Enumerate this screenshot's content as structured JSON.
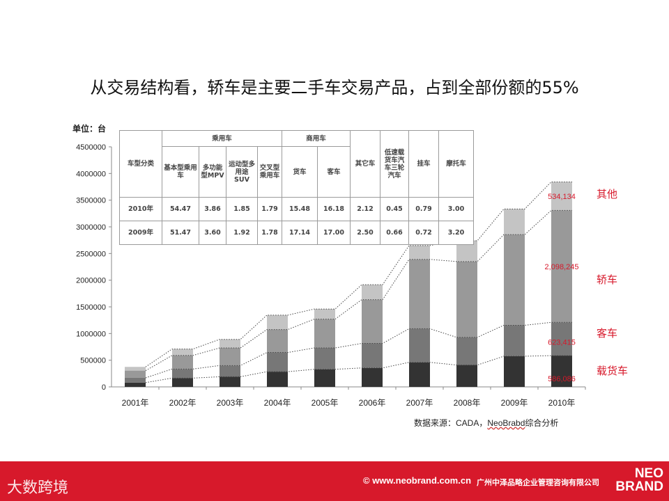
{
  "title": "从交易结构看，轿车是主要二手车交易产品，占到全部份额的55%",
  "unit_label": "单位：台",
  "source": {
    "prefix": "数据来源：",
    "main": "CADA，",
    "squiggle": "NeoBrabd",
    "suffix": "综合分析"
  },
  "table": {
    "corner": "车型分类",
    "group_passenger": "乘用车",
    "group_commercial": "商用车",
    "cols": [
      "基本型乘用车",
      "多功能型MPV",
      "运动型多用途SUV",
      "交叉型乘用车",
      "货车",
      "客车",
      "其它车",
      "低速载货车汽车三轮汽车",
      "挂车",
      "摩托车"
    ],
    "rows": [
      {
        "year": "2010年",
        "values": [
          "54.47",
          "3.86",
          "1.85",
          "1.79",
          "15.48",
          "16.18",
          "2.12",
          "0.45",
          "0.79",
          "3.00"
        ]
      },
      {
        "year": "2009年",
        "values": [
          "51.47",
          "3.60",
          "1.92",
          "1.78",
          "17.14",
          "17.00",
          "2.50",
          "0.66",
          "0.72",
          "3.20"
        ]
      }
    ]
  },
  "chart_data": {
    "type": "bar",
    "stacked": true,
    "categories": [
      "2001年",
      "2002年",
      "2003年",
      "2004年",
      "2005年",
      "2006年",
      "2007年",
      "2008年",
      "2009年",
      "2010年"
    ],
    "series": [
      {
        "name": "载货车",
        "color": "#333333",
        "values": [
          80000,
          165000,
          190000,
          285000,
          330000,
          355000,
          460000,
          410000,
          575000,
          586086
        ]
      },
      {
        "name": "客车",
        "color": "#777777",
        "values": [
          90000,
          170000,
          210000,
          360000,
          400000,
          460000,
          630000,
          520000,
          580000,
          623415
        ]
      },
      {
        "name": "轿车",
        "color": "#999999",
        "values": [
          135000,
          255000,
          330000,
          430000,
          540000,
          820000,
          1300000,
          1420000,
          1700000,
          2098245
        ]
      },
      {
        "name": "其他",
        "color": "#c4c4c4",
        "values": [
          70000,
          120000,
          160000,
          270000,
          190000,
          280000,
          260000,
          390000,
          480000,
          534134
        ]
      }
    ],
    "ylim": [
      0,
      4500000
    ],
    "yticks": [
      0,
      500000,
      1000000,
      1500000,
      2000000,
      2500000,
      3000000,
      3500000,
      4000000,
      4500000
    ],
    "ytick_labels": [
      "0",
      "500000",
      "1000000",
      "1500000",
      "2000000",
      "2500000",
      "3000000",
      "3500000",
      "4000000",
      "4500000"
    ],
    "data_labels": [
      "586,086",
      "623,415",
      "2,098,245",
      "534,134"
    ],
    "legend": [
      "载货车",
      "客车",
      "轿车",
      "其他"
    ],
    "label_color": "#d7192b"
  },
  "footer": {
    "left_logo": "大数跨境",
    "copyright": "© www.neobrand.com.cn",
    "company": "广州中泽品略企业管理咨询有限公司",
    "brand_top": "NEO",
    "brand_bottom": "BRAND"
  }
}
